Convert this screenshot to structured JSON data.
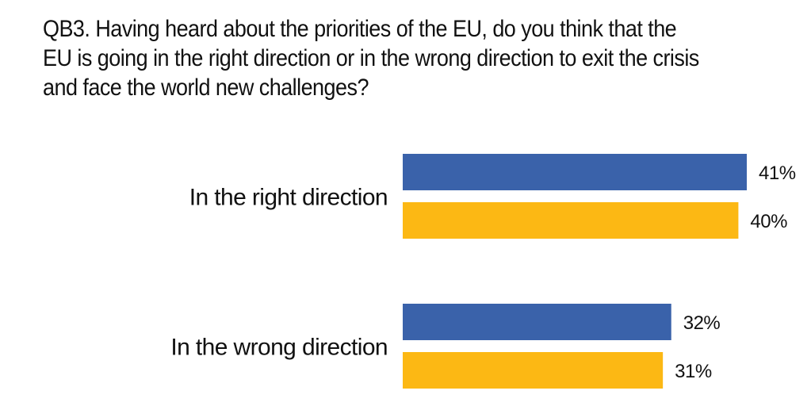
{
  "question": "QB3. Having heard about the priorities of the EU, do you think that the EU is going in the right direction or in the wrong direction to exit the crisis and face the world new challenges?",
  "colors": {
    "series_a": "#3a62aa",
    "series_b": "#fcb814",
    "text": "#111111",
    "background": "#ffffff"
  },
  "chart_data": {
    "type": "bar",
    "orientation": "horizontal",
    "categories": [
      "In the right direction",
      "In the wrong direction"
    ],
    "series": [
      {
        "values": [
          41,
          32
        ],
        "color": "#3a62aa"
      },
      {
        "values": [
          40,
          31
        ],
        "color": "#fcb814"
      }
    ],
    "value_labels": [
      [
        "41%",
        "32%"
      ],
      [
        "40%",
        "31%"
      ]
    ],
    "value_suffix": "%",
    "xlim": [
      0,
      41
    ],
    "grid": false,
    "legend": "none",
    "title": "",
    "xlabel": "",
    "ylabel": ""
  }
}
